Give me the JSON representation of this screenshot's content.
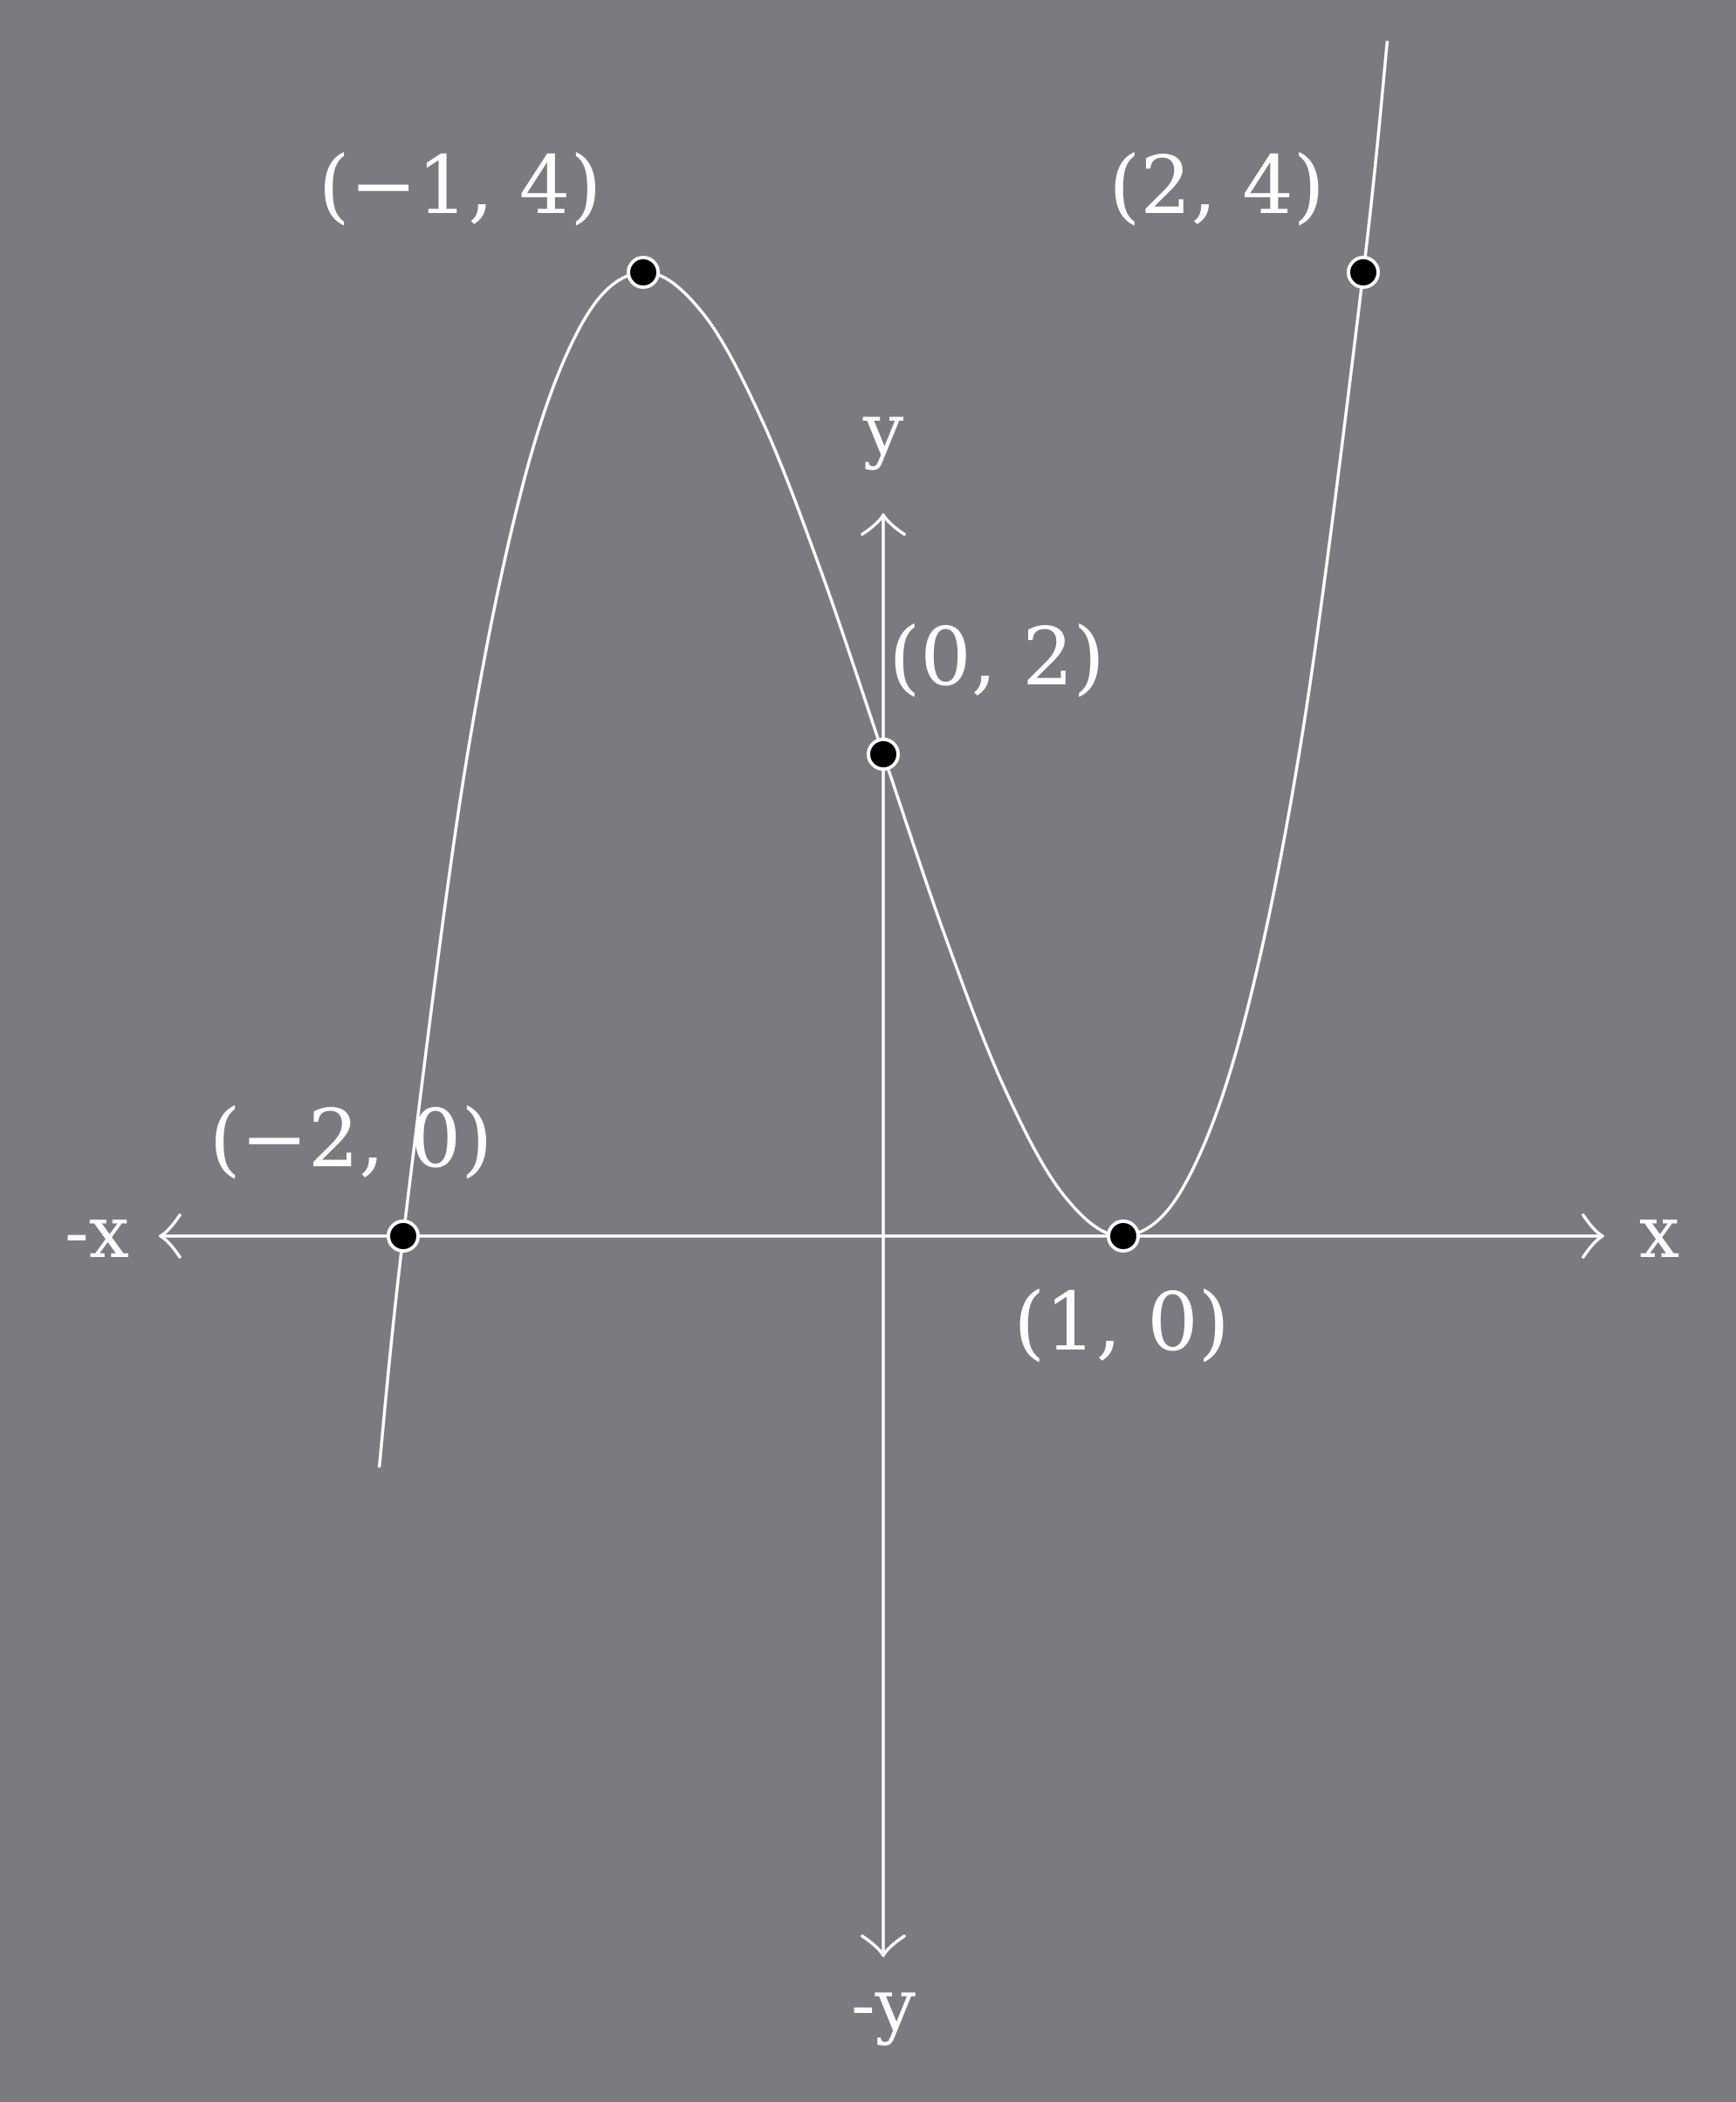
{
  "colors": {
    "background": "#797b80",
    "line": "#ffffff",
    "point_fill": "#000000"
  },
  "axes": {
    "x_label": "x",
    "neg_x_label": "-x",
    "y_label": "y",
    "neg_y_label": "-y"
  },
  "chart_data": {
    "type": "line",
    "title": "",
    "xlabel": "x",
    "ylabel": "y",
    "xlim": [
      -2.1,
      2.1
    ],
    "ylim": [
      -2.1,
      5.0
    ],
    "grid": false,
    "series": [
      {
        "x": [
          -2.1,
          -2,
          -1.75,
          -1.5,
          -1.25,
          -1,
          -0.75,
          -0.5,
          -0.25,
          0,
          0.25,
          0.5,
          0.75,
          1,
          1.25,
          1.5,
          1.75,
          2,
          2.1
        ],
        "y": [
          -0.961,
          0,
          1.891,
          3.125,
          3.797,
          4,
          3.828,
          3.375,
          2.734,
          2,
          1.266,
          0.625,
          0.172,
          0,
          0.203,
          0.875,
          2.109,
          4,
          4.961
        ]
      }
    ],
    "points": [
      {
        "x": -2,
        "y": 0,
        "label": "(−2, 0)"
      },
      {
        "x": -1,
        "y": 4,
        "label": "(−1, 4)"
      },
      {
        "x": 0,
        "y": 2,
        "label": "(0, 2)"
      },
      {
        "x": 1,
        "y": 0,
        "label": "(1, 0)"
      },
      {
        "x": 2,
        "y": 4,
        "label": "(2, 4)"
      }
    ]
  }
}
